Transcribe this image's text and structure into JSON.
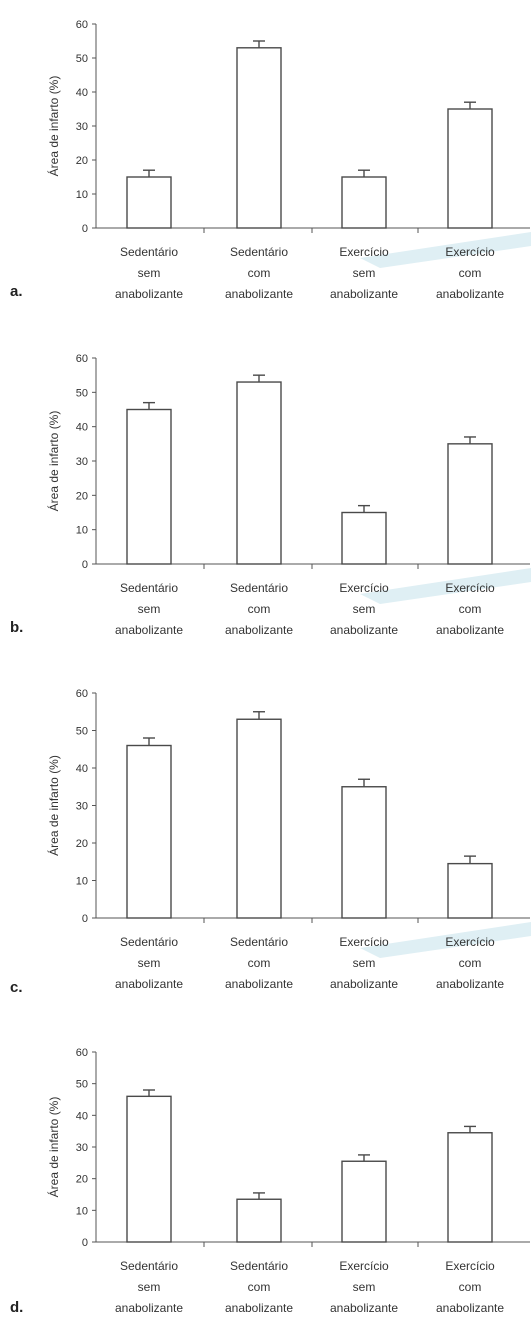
{
  "colors": {
    "axis": "#555555",
    "bar_fill": "#ffffff",
    "bar_stroke": "#4a4a4a",
    "text": "#333333",
    "watermark": "#dfeff4"
  },
  "chart_data": [
    {
      "type": "bar",
      "panel_label": "a.",
      "ylabel": "Área de infarto (%)",
      "ylim": [
        0,
        60
      ],
      "yticks": [
        "0",
        "10",
        "20",
        "30",
        "40",
        "50",
        "60"
      ],
      "categories": [
        [
          "Sedentário",
          "sem",
          "anabolizante"
        ],
        [
          "Sedentário",
          "com",
          "anabolizante"
        ],
        [
          "Exercício",
          "sem",
          "anabolizante"
        ],
        [
          "Exercício",
          "com",
          "anabolizante"
        ]
      ],
      "values": [
        15,
        53,
        15,
        35
      ],
      "errors": [
        2,
        2,
        2,
        2
      ]
    },
    {
      "type": "bar",
      "panel_label": "b.",
      "ylabel": "Área de infarto (%)",
      "ylim": [
        0,
        60
      ],
      "yticks": [
        "0",
        "10",
        "20",
        "30",
        "40",
        "50",
        "60"
      ],
      "categories": [
        [
          "Sedentário",
          "sem",
          "anabolizante"
        ],
        [
          "Sedentário",
          "com",
          "anabolizante"
        ],
        [
          "Exercício",
          "sem",
          "anabolizante"
        ],
        [
          "Exercício",
          "com",
          "anabolizante"
        ]
      ],
      "values": [
        45,
        53,
        15,
        35
      ],
      "errors": [
        2,
        2,
        2,
        2
      ]
    },
    {
      "type": "bar",
      "panel_label": "c.",
      "ylabel": "Área de infarto (%)",
      "ylim": [
        0,
        60
      ],
      "yticks": [
        "0",
        "10",
        "20",
        "30",
        "40",
        "50",
        "60"
      ],
      "categories": [
        [
          "Sedentário",
          "sem",
          "anabolizante"
        ],
        [
          "Sedentário",
          "com",
          "anabolizante"
        ],
        [
          "Exercício",
          "sem",
          "anabolizante"
        ],
        [
          "Exercício",
          "com",
          "anabolizante"
        ]
      ],
      "values": [
        46,
        53,
        35,
        14.5
      ],
      "errors": [
        2,
        2,
        2,
        2
      ]
    },
    {
      "type": "bar",
      "panel_label": "d.",
      "ylabel": "Área de infarto (%)",
      "ylim": [
        0,
        60
      ],
      "yticks": [
        "0",
        "10",
        "20",
        "30",
        "40",
        "50",
        "60"
      ],
      "categories": [
        [
          "Sedentário",
          "sem",
          "anabolizante"
        ],
        [
          "Sedentário",
          "com",
          "anabolizante"
        ],
        [
          "Exercício",
          "sem",
          "anabolizante"
        ],
        [
          "Exercício",
          "com",
          "anabolizante"
        ]
      ],
      "values": [
        46,
        13.5,
        25.5,
        34.5
      ],
      "errors": [
        2,
        2,
        2,
        2
      ]
    }
  ]
}
